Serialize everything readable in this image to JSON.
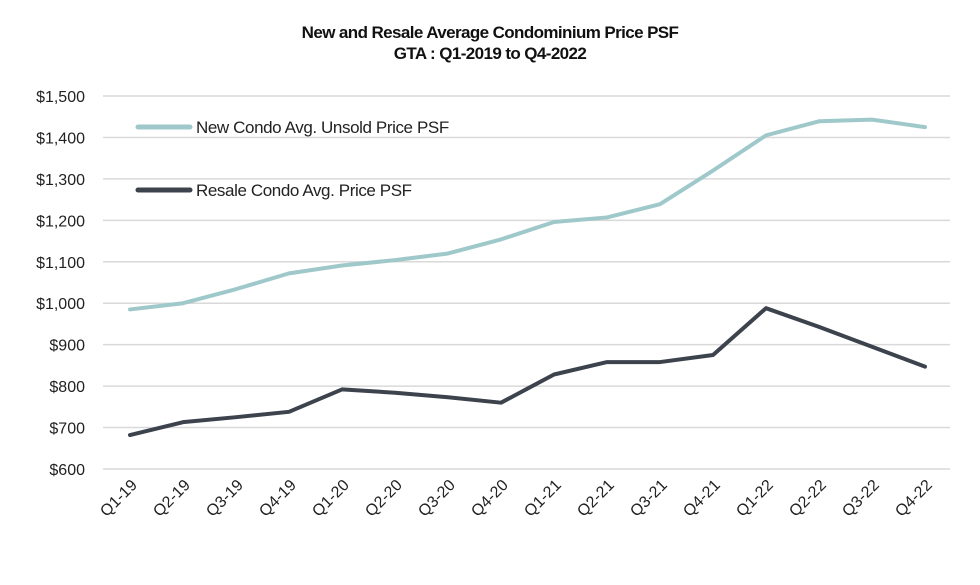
{
  "chart_data": {
    "type": "line",
    "title": "New and Resale Average Condominium Price PSF",
    "subtitle": "GTA : Q1-2019 to Q4-2022",
    "xlabel": "",
    "ylabel": "",
    "categories": [
      "Q1-19",
      "Q2-19",
      "Q3-19",
      "Q4-19",
      "Q1-20",
      "Q2-20",
      "Q3-20",
      "Q4-20",
      "Q1-21",
      "Q2-21",
      "Q3-21",
      "Q4-21",
      "Q1-22",
      "Q2-22",
      "Q3-22",
      "Q4-22"
    ],
    "ylim": [
      600,
      1500
    ],
    "yticks": [
      600,
      700,
      800,
      900,
      1000,
      1100,
      1200,
      1300,
      1400,
      1500
    ],
    "ytick_labels": [
      "$600",
      "$700",
      "$800",
      "$900",
      "$1,000",
      "$1,100",
      "$1,200",
      "$1,300",
      "$1,400",
      "$1,500"
    ],
    "grid": "horizontal",
    "legend_position": "top-left",
    "series": [
      {
        "name": "New Condo Avg. Unsold Price PSF",
        "color": "#9fc8ca",
        "values": [
          985,
          1000,
          1034,
          1072,
          1091,
          1104,
          1120,
          1154,
          1196,
          1207,
          1239,
          1320,
          1405,
          1439,
          1443,
          1425
        ]
      },
      {
        "name": "Resale Condo Avg. Price PSF",
        "color": "#3c434d",
        "values": [
          682,
          713,
          725,
          738,
          792,
          784,
          773,
          760,
          828,
          858,
          858,
          875,
          988,
          943,
          895,
          847
        ]
      }
    ]
  }
}
